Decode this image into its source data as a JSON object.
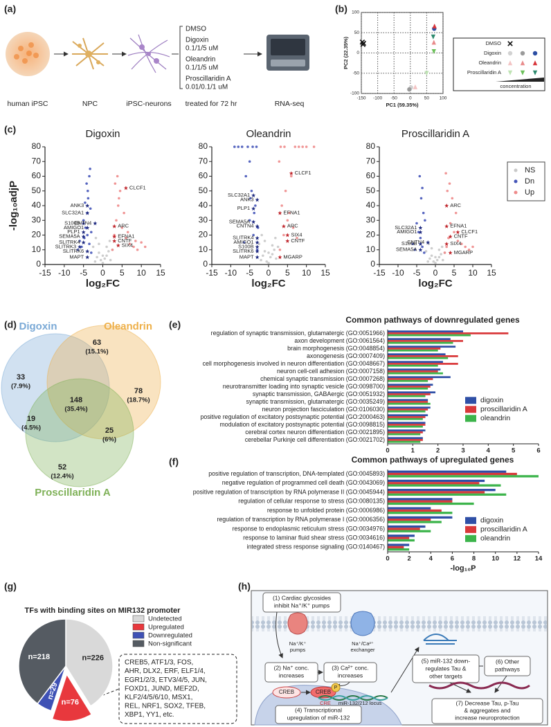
{
  "panel_labels": [
    "(a)",
    "(b)",
    "(c)",
    "(d)",
    "(e)",
    "(f)",
    "(g)",
    "(h)"
  ],
  "workflow": {
    "stages": [
      "human iPSC",
      "NPC",
      "iPSC-neurons",
      "treated for 72 hr",
      "RNA-seq"
    ],
    "treatments": [
      {
        "drug": "DMSO"
      },
      {
        "drug": "Digoxin",
        "dose": "0.1/1/5 uM"
      },
      {
        "drug": "Oleandrin",
        "dose": "0.1/1/5 uM"
      },
      {
        "drug": "Proscillaridin A",
        "dose": "0.01/0.1/1 uM"
      }
    ]
  },
  "chart_data": [
    {
      "type": "pca",
      "xlabel": "PC1 (59.35%)",
      "ylabel": "PC2 (22.35%)",
      "xlim": [
        -150,
        100
      ],
      "ylim": [
        -100,
        100
      ],
      "xticks": [
        -150,
        -100,
        -50,
        0,
        50,
        100
      ],
      "yticks": [
        -100,
        -50,
        0,
        50,
        100
      ],
      "grid": true,
      "legend_note": "concentration",
      "series": [
        {
          "name": "DMSO",
          "marker": "x",
          "colors": [
            "#111111"
          ],
          "x": [
            -147,
            -143,
            -145
          ],
          "values": [
            27,
            24,
            21
          ]
        },
        {
          "name": "Digoxin",
          "marker": "o",
          "colors": [
            "#d2d2d2",
            "#9a9a9a",
            "#2c4ea3"
          ],
          "x": [
            2,
            -3,
            73
          ],
          "values": [
            -85,
            -90,
            60
          ]
        },
        {
          "name": "Oleandrin",
          "marker": "^",
          "colors": [
            "#f3c4c4",
            "#e88b8b",
            "#d8343a"
          ],
          "x": [
            15,
            72,
            74
          ],
          "values": [
            -84,
            26,
            66
          ]
        },
        {
          "name": "Proscillaridin A",
          "marker": "v",
          "colors": [
            "#bfe3b4",
            "#6cc05a",
            "#2d8a6e"
          ],
          "x": [
            50,
            72,
            70
          ],
          "values": [
            -50,
            4,
            40
          ]
        }
      ]
    },
    {
      "type": "volcano",
      "title": "Digoxin",
      "xlabel": "log₂FC",
      "ylabel": "-log₁₀adjP",
      "xlim": [
        -15,
        15
      ],
      "ylim": [
        0,
        80
      ],
      "xticks": [
        -15,
        -10,
        -5,
        0,
        5,
        10,
        15
      ],
      "yticks": [
        0,
        10,
        20,
        30,
        40,
        50,
        60,
        70,
        80
      ],
      "series": [
        {
          "color": "#c8c8c8",
          "x": [
            -2,
            -1.5,
            -1,
            -0.5,
            0,
            0.5,
            1,
            1.5,
            2,
            -2.5,
            2.5,
            -1,
            1,
            0,
            -1.8,
            1.8
          ],
          "values": [
            2,
            5,
            8,
            3,
            1,
            4,
            6,
            9,
            3,
            12,
            10,
            14,
            12,
            6,
            18,
            16
          ]
        },
        {
          "color": "#4454b8",
          "x": [
            -3,
            -3.5,
            -4,
            -4.5,
            -5,
            -3.2,
            -3.8,
            -4.2,
            -5.5,
            -6,
            -3.5,
            -4,
            -3,
            -6.5,
            -4.6,
            -3.3,
            -3.9,
            -4.8
          ],
          "values": [
            8,
            14,
            20,
            25,
            30,
            38,
            45,
            55,
            12,
            16,
            60,
            35,
            22,
            10,
            42,
            65,
            50,
            18
          ]
        },
        {
          "color": "#ee8a8a",
          "x": [
            2.5,
            3,
            3.5,
            4,
            5,
            6,
            7,
            8,
            9,
            10,
            3.2,
            4.5,
            5.5,
            3.8,
            6.5,
            8.5,
            11,
            4.2
          ],
          "values": [
            10,
            20,
            30,
            40,
            25,
            18,
            14,
            12,
            10,
            15,
            55,
            50,
            35,
            60,
            22,
            16,
            12,
            45
          ]
        }
      ],
      "annotations": [
        {
          "text": "CLCF1",
          "x": 6,
          "y": 52
        },
        {
          "text": "ANK3",
          "x": -4,
          "y": 40
        },
        {
          "text": "SLC32A1",
          "x": -4,
          "y": 35
        },
        {
          "text": "S100B",
          "x": -5,
          "y": 28
        },
        {
          "text": "CNTN4",
          "x": -2,
          "y": 28
        },
        {
          "text": "AMIGO1",
          "x": -4,
          "y": 25
        },
        {
          "text": "PLP1",
          "x": -5,
          "y": 22
        },
        {
          "text": "SEMA5A",
          "x": -5,
          "y": 19
        },
        {
          "text": "SLITRK4",
          "x": -5,
          "y": 15
        },
        {
          "text": "SLITRK3",
          "x": -6,
          "y": 12
        },
        {
          "text": "SLITRK6",
          "x": -4,
          "y": 9
        },
        {
          "text": "MAPT",
          "x": -4,
          "y": 5
        },
        {
          "text": "ARC",
          "x": 3,
          "y": 26
        },
        {
          "text": "EFNA1",
          "x": 3,
          "y": 19
        },
        {
          "text": "CNTF",
          "x": 3,
          "y": 16
        },
        {
          "text": "SIX4",
          "x": 4,
          "y": 13
        }
      ]
    },
    {
      "type": "volcano",
      "title": "Oleandrin",
      "xlim": [
        -15,
        15
      ],
      "ylim": [
        0,
        80
      ],
      "xticks": [
        -15,
        -10,
        -5,
        0,
        5,
        10,
        15
      ],
      "yticks": [
        0,
        10,
        20,
        30,
        40,
        50,
        60,
        70,
        80
      ],
      "series": [
        {
          "color": "#c8c8c8",
          "x": [
            -2,
            -1.5,
            -1,
            -0.5,
            0,
            0.5,
            1,
            1.5,
            2,
            -2.5,
            2.5,
            -1,
            1,
            0,
            -1.8,
            1.8
          ],
          "values": [
            3,
            6,
            9,
            2,
            1,
            5,
            7,
            10,
            4,
            14,
            12,
            16,
            13,
            8,
            20,
            18
          ]
        },
        {
          "color": "#4454b8",
          "x": [
            -3,
            -4,
            -5,
            -3.5,
            -4.5,
            -6,
            -7,
            -3.2,
            -4.2,
            -5.5,
            -8,
            -3.8,
            -4.8,
            -2.8,
            -6.5,
            -9,
            -5
          ],
          "values": [
            10,
            20,
            30,
            40,
            50,
            60,
            80,
            80,
            80,
            80,
            80,
            35,
            45,
            25,
            15,
            80,
            70
          ]
        },
        {
          "color": "#ee8a8a",
          "x": [
            3,
            4,
            5,
            3.5,
            4.5,
            6,
            7,
            8,
            9,
            3.2,
            4.2,
            5.5,
            10,
            12,
            6.5,
            7.5,
            2.8
          ],
          "values": [
            10,
            20,
            30,
            40,
            50,
            60,
            80,
            80,
            80,
            80,
            80,
            35,
            80,
            80,
            25,
            18,
            70
          ]
        }
      ],
      "annotations": [
        {
          "text": "CLCF1",
          "x": 6,
          "y": 62
        },
        {
          "text": "SLC32A1",
          "x": -4,
          "y": 47
        },
        {
          "text": "ANK3",
          "x": -3,
          "y": 44
        },
        {
          "text": "PLP1",
          "x": -4,
          "y": 38
        },
        {
          "text": "EFNA1",
          "x": 3,
          "y": 35
        },
        {
          "text": "SEMA5A",
          "x": -4,
          "y": 29
        },
        {
          "text": "CNTN4",
          "x": -3,
          "y": 26
        },
        {
          "text": "ARC",
          "x": 4,
          "y": 26
        },
        {
          "text": "SIX4",
          "x": 5,
          "y": 20
        },
        {
          "text": "CNTF",
          "x": 5,
          "y": 16
        },
        {
          "text": "SLITRK4",
          "x": -3,
          "y": 18
        },
        {
          "text": "AMIGO1",
          "x": -3,
          "y": 15
        },
        {
          "text": "S100B",
          "x": -3,
          "y": 12
        },
        {
          "text": "SLITRK6",
          "x": -3,
          "y": 9
        },
        {
          "text": "MAPT",
          "x": -3,
          "y": 5
        },
        {
          "text": "MGARP",
          "x": 3,
          "y": 5
        }
      ]
    },
    {
      "type": "volcano",
      "title": "Proscillaridin A",
      "xlim": [
        -15,
        15
      ],
      "ylim": [
        0,
        80
      ],
      "xticks": [
        -15,
        -10,
        -5,
        0,
        5,
        10,
        15
      ],
      "yticks": [
        0,
        10,
        20,
        30,
        40,
        50,
        60,
        70,
        80
      ],
      "legend": true,
      "series": [
        {
          "name": "NS",
          "color": "#c8c8c8",
          "x": [
            -2,
            -1.5,
            -1,
            -0.5,
            0,
            0.5,
            1,
            1.5,
            2,
            -2.5,
            2.5,
            -1,
            1,
            0,
            -1.8,
            1.8
          ],
          "values": [
            2,
            4,
            6,
            2,
            1,
            3,
            5,
            7,
            3,
            9,
            8,
            11,
            10,
            5,
            14,
            12
          ]
        },
        {
          "name": "Dn",
          "color": "#4454b8",
          "x": [
            -3,
            -3.5,
            -4,
            -4.5,
            -5,
            -3.2,
            -3.8,
            -6,
            -4.2,
            -2.8,
            -5.5,
            -3.5
          ],
          "values": [
            8,
            12,
            18,
            22,
            28,
            35,
            45,
            14,
            60,
            30,
            10,
            52
          ]
        },
        {
          "name": "Up",
          "color": "#ee8a8a",
          "x": [
            2.5,
            3,
            3.5,
            4,
            5,
            6,
            7,
            8,
            3.2,
            4.5,
            9,
            2.8,
            5.5,
            10,
            3.8
          ],
          "values": [
            8,
            12,
            18,
            28,
            22,
            16,
            14,
            12,
            50,
            45,
            10,
            62,
            35,
            12,
            55
          ]
        }
      ],
      "annotations": [
        {
          "text": "ARC",
          "x": 3,
          "y": 40
        },
        {
          "text": "EFNA1",
          "x": 3,
          "y": 26
        },
        {
          "text": "CLCF1",
          "x": 6,
          "y": 22
        },
        {
          "text": "CNTF",
          "x": 4,
          "y": 19
        },
        {
          "text": "SIX4",
          "x": 3,
          "y": 14
        },
        {
          "text": "MGARP",
          "x": 4,
          "y": 8
        },
        {
          "text": "SLC32A1",
          "x": -4,
          "y": 25
        },
        {
          "text": "AMIGO1",
          "x": -4,
          "y": 22
        },
        {
          "text": "CNTN4",
          "x": -2,
          "y": 15
        },
        {
          "text": "S100B",
          "x": -4,
          "y": 14
        },
        {
          "text": "SEMA5A",
          "x": -4,
          "y": 10
        }
      ]
    },
    {
      "type": "venn",
      "sets": [
        {
          "name": "Digoxin",
          "color": "#7aa9d6"
        },
        {
          "name": "Oleandrin",
          "color": "#eeb04a"
        },
        {
          "name": "Proscillaridin A",
          "color": "#7fb158"
        }
      ],
      "regions": [
        {
          "count": 33,
          "percent": "(7.9%)"
        },
        {
          "count": 63,
          "percent": "(15.1%)"
        },
        {
          "count": 78,
          "percent": "(18.7%)"
        },
        {
          "count": 19,
          "percent": "(4.5%)"
        },
        {
          "count": 148,
          "percent": "(35.4%)"
        },
        {
          "count": 25,
          "percent": "(6%)"
        },
        {
          "count": 52,
          "percent": "(12.4%)"
        }
      ]
    },
    {
      "type": "hbar",
      "title": "Common pathways of downregulated genes",
      "categories": [
        "regulation of synaptic transmission, glutamatergic (GO:0051966)",
        "axon development (GO:0061564)",
        "brain morphogenesis (GO:0048854)",
        "axonogenesis (GO:0007409)",
        "cell morphogenesis involved in neuron differentiation (GO:0048667)",
        "neuron cell-cell adhesion (GO:0007158)",
        "chemical synaptic transmission (GO:0007268)",
        "neurotransmitter loading into synaptic vesicle (GO:0098700)",
        "synaptic transmission, GABAergic (GO:0051932)",
        "synaptic transmission, glutamatergic (GO:0035249)",
        "neuron projection fasciculation (GO:0106030)",
        "positive regulation of excitatory postsynaptic potential (GO:2000463)",
        "modulation of excitatory postsynaptic potential (GO:0098815)",
        "cerebral cortex neuron differentiation (GO:0021895)",
        "cerebellar Purkinje cell differentiation (GO:0021702)"
      ],
      "xlim": [
        0,
        6
      ],
      "xticks": [
        0,
        1,
        2,
        3,
        4,
        5,
        6
      ],
      "series": [
        {
          "name": "digoxin",
          "color": "#2f4fa6",
          "values": [
            3.0,
            2.5,
            2.7,
            2.3,
            2.2,
            2.1,
            2.5,
            1.8,
            1.9,
            1.6,
            1.7,
            1.6,
            1.5,
            1.5,
            1.4
          ]
        },
        {
          "name": "proscillaridin A",
          "color": "#d9383a",
          "values": [
            4.8,
            3.0,
            2.1,
            2.8,
            2.8,
            2.0,
            1.8,
            1.7,
            1.7,
            1.6,
            1.6,
            1.5,
            1.5,
            1.4,
            1.4
          ]
        },
        {
          "name": "oleandrin",
          "color": "#3cb44b",
          "values": [
            3.3,
            2.6,
            2.0,
            2.4,
            2.0,
            2.2,
            1.6,
            1.6,
            1.5,
            1.7,
            1.5,
            1.4,
            1.4,
            1.3,
            1.3
          ]
        }
      ]
    },
    {
      "type": "hbar",
      "title": "Common pathways of upregulated genes",
      "xlabel": "-log₁₀P",
      "categories": [
        "positive regulation of transcription, DNA-templated (GO:0045893)",
        "negative regulation of programmed cell death (GO:0043069)",
        "positive regulation of transcription by RNA polymerase II (GO:0045944)",
        "regulation of cellular response to stress (GO:0080135)",
        "response to unfolded protein (GO:0006986)",
        "regulation of transcription by RNA polymerase I (GO:0006356)",
        "response to endoplasmic reticulum stress (GO:0034976)",
        "response to laminar fluid shear stress (GO:0034616)",
        "integrated stress response signaling (GO:0140467)"
      ],
      "xlim": [
        0,
        14
      ],
      "xticks": [
        0,
        2,
        4,
        6,
        8,
        10,
        12,
        14
      ],
      "series": [
        {
          "name": "digoxin",
          "color": "#2f4fa6",
          "values": [
            11,
            9,
            10,
            6,
            4,
            6,
            3.5,
            2.5,
            2
          ]
        },
        {
          "name": "proscillaridin A",
          "color": "#d9383a",
          "values": [
            12,
            8.5,
            9,
            6,
            5,
            4,
            3,
            2,
            1.5
          ]
        },
        {
          "name": "oleandrin",
          "color": "#3cb44b",
          "values": [
            14,
            10.5,
            11,
            8,
            6,
            5,
            4,
            2.5,
            2
          ]
        }
      ]
    },
    {
      "type": "pie",
      "title": "TFs with binding sites on MIR132 promoter",
      "categories": [
        "Undetected",
        "Upregulated",
        "Downregulated",
        "Non-significant"
      ],
      "values": [
        226,
        76,
        29,
        218
      ],
      "value_labels": [
        "n=226",
        "n=76",
        "n=29",
        "n=218"
      ],
      "colors": [
        "#d9d9d9",
        "#e8383d",
        "#3f51b5",
        "#555b62"
      ],
      "explode": [
        false,
        true,
        false,
        false
      ]
    }
  ],
  "tf_box": {
    "lines": [
      "CREB5, ATF1/3, FOS,",
      "AHR, DLX2, ERF, ELF1/4,",
      "EGR1/2/3, ETV3/4/5, JUN,",
      "FOXD1, JUND, MEF2D,",
      "KLF2/4/5/6/10, MSX1,",
      "REL, NRF1, SOX2, TFEB,",
      "XBP1, YY1, etc."
    ]
  },
  "mechanism": {
    "step1": [
      "(1) Cardiac glycosides",
      "inhibit Na⁺/K⁺ pumps"
    ],
    "pump": [
      "Na⁺/K⁺",
      "pumps"
    ],
    "exchanger": [
      "Na⁺/Ca²⁺",
      "exchanger"
    ],
    "step2": [
      "(2) Na⁺ conc.",
      "increases"
    ],
    "step3": [
      "(3) Ca²⁺ conc.",
      "increases"
    ],
    "creb": "CREB",
    "creb_p": "CREB",
    "phospho": "P",
    "cre": "CRE",
    "locus": "miR-132/212 locus",
    "step4": [
      "(4) Transcriptional",
      "upregulation of miR-132"
    ],
    "step5": [
      "(5) miR-132 down-",
      "regulates Tau &",
      "other targets"
    ],
    "step6": [
      "(6) Other",
      "pathways"
    ],
    "step7": [
      "(7) Decrease Tau, p-Tau",
      "& aggregates and",
      "increase neuroprotection"
    ]
  }
}
